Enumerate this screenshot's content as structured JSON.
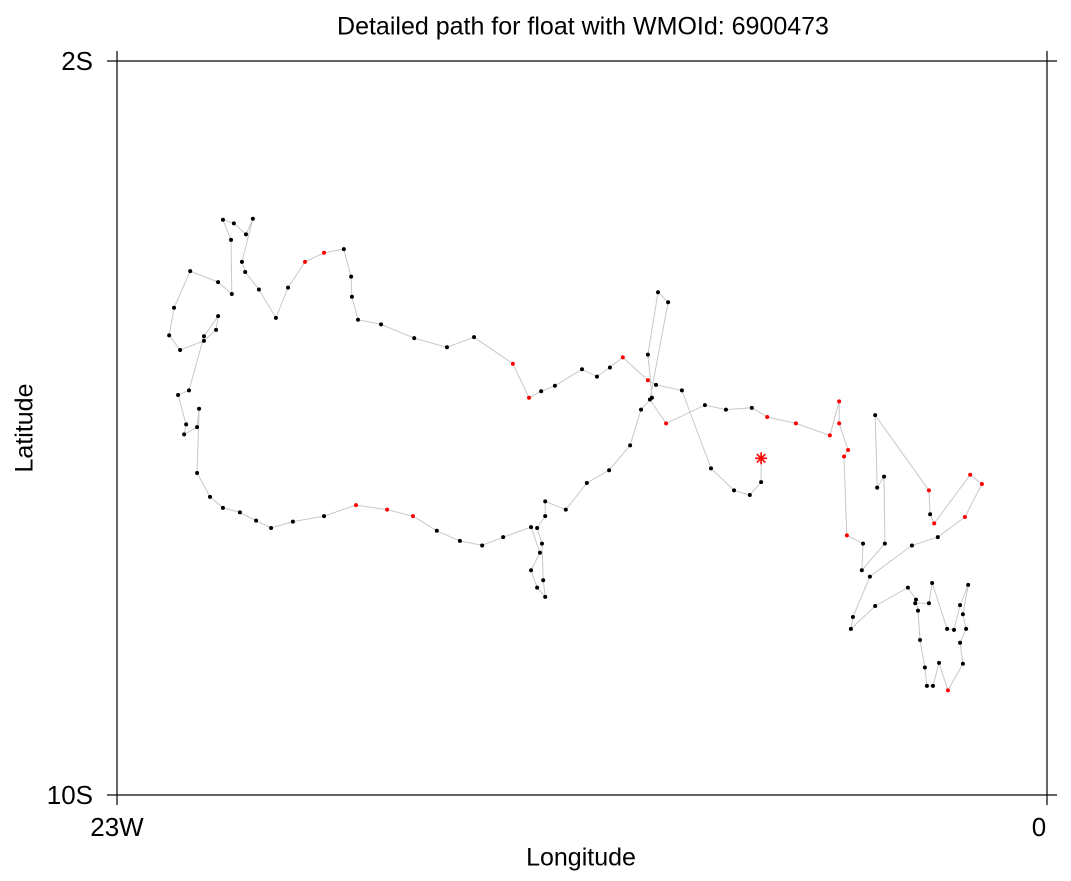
{
  "chart_data": {
    "type": "path",
    "title": "Detailed path for float with WMOId: 6900473",
    "xlabel": "Longitude",
    "ylabel": "Latitude",
    "xlim": [
      -23,
      0
    ],
    "xticks": [
      {
        "value": -23,
        "label": "23W"
      },
      0
    ],
    "ylim": [
      -10,
      -2
    ],
    "yticks": [
      {
        "value": -2,
        "label": "2S"
      },
      {
        "value": -10,
        "label": "10S"
      }
    ],
    "line_color": "#c8c8c8",
    "start_marker": "star",
    "series": [
      {
        "x": [
          -7.07,
          -7.07,
          -7.35,
          -7.74,
          -8.31,
          -9.03,
          -9.67,
          -9.87,
          -10.49,
          -10.81,
          -11.13,
          -11.5,
          -12.17,
          -12.51,
          -12.81,
          -13.21,
          -14.17,
          -14.84,
          -15.65,
          -16.47,
          -17.04,
          -17.19,
          -17.21,
          -17.39,
          -17.88,
          -18.35,
          -18.77,
          -19.07,
          -19.49,
          -19.83,
          -19.91,
          -19.64,
          -19.81,
          -20.11,
          -20.38,
          -20.18,
          -20.16,
          -20.5,
          -21.19,
          -21.59,
          -21.71,
          -21.44,
          -20.85,
          -20.55,
          -20.5,
          -20.85,
          -21.22,
          -21.49,
          -21.29,
          -21.34,
          -21.02,
          -20.97,
          -21.02,
          -20.7,
          -20.38,
          -19.96,
          -19.56,
          -19.19,
          -18.65,
          -17.88,
          -17.09,
          -16.32,
          -15.68,
          -15.09,
          -14.52,
          -13.97,
          -13.45,
          -12.76,
          -12.54,
          -12.76,
          -12.61,
          -12.41,
          -12.46,
          -12.49,
          -12.61,
          -12.41,
          -12.41,
          -11.9,
          -11.38,
          -10.83,
          -10.31,
          -10.04,
          -9.77,
          -9.87,
          -9.62,
          -9.37,
          -9.82,
          -9.42,
          -8.46,
          -7.94,
          -7.3,
          -6.92,
          -6.21,
          -5.37,
          -5.14,
          -5.14,
          -4.92,
          -5.02,
          -4.95,
          -4.55,
          -4.58,
          -4.01,
          -4.03,
          -4.2,
          -4.25,
          -2.92,
          -2.89,
          -2.79,
          -1.9,
          -1.61,
          -2.03,
          -2.7,
          -3.34,
          -4.38,
          -4.8,
          -4.85,
          -4.25,
          -3.44,
          -3.24,
          -3.19,
          -3.14,
          -3.02,
          -2.97,
          -2.82,
          -2.67,
          -2.45,
          -2.08,
          -2.15,
          -2.0,
          -2.08,
          -1.95,
          -2.15,
          -2.3,
          -2.47,
          -2.84,
          -2.92,
          -3.26
        ],
        "values": [
          -6.33,
          -6.59,
          -6.73,
          -6.68,
          -6.44,
          -5.59,
          -5.53,
          -5.48,
          -5.23,
          -5.34,
          -5.44,
          -5.36,
          -5.54,
          -5.6,
          -5.67,
          -5.3,
          -5.01,
          -5.12,
          -5.02,
          -4.87,
          -4.82,
          -4.57,
          -4.35,
          -4.05,
          -4.09,
          -4.19,
          -4.47,
          -4.8,
          -4.49,
          -4.3,
          -4.19,
          -3.72,
          -3.89,
          -3.77,
          -3.73,
          -3.95,
          -4.54,
          -4.41,
          -4.29,
          -4.69,
          -4.99,
          -5.15,
          -5.05,
          -4.93,
          -4.78,
          -5.0,
          -5.59,
          -5.64,
          -5.96,
          -6.07,
          -5.99,
          -5.79,
          -6.49,
          -6.75,
          -6.87,
          -6.92,
          -7.01,
          -7.09,
          -7.02,
          -6.96,
          -6.84,
          -6.89,
          -6.96,
          -7.12,
          -7.23,
          -7.28,
          -7.19,
          -7.08,
          -7.36,
          -7.55,
          -7.74,
          -7.84,
          -7.66,
          -7.26,
          -7.09,
          -6.96,
          -6.8,
          -6.89,
          -6.6,
          -6.46,
          -6.19,
          -5.8,
          -5.67,
          -5.2,
          -4.52,
          -4.63,
          -5.69,
          -5.95,
          -5.75,
          -5.8,
          -5.78,
          -5.88,
          -5.95,
          -6.08,
          -5.71,
          -5.95,
          -6.24,
          -6.31,
          -7.17,
          -7.26,
          -7.55,
          -7.26,
          -6.53,
          -6.65,
          -5.86,
          -6.68,
          -6.94,
          -7.04,
          -6.51,
          -6.61,
          -6.97,
          -7.19,
          -7.28,
          -7.62,
          -8.06,
          -8.19,
          -7.94,
          -7.74,
          -7.87,
          -7.99,
          -8.31,
          -8.61,
          -8.81,
          -8.81,
          -8.56,
          -8.86,
          -8.57,
          -8.34,
          -8.19,
          -8.03,
          -7.71,
          -7.93,
          -8.2,
          -8.19,
          -7.69,
          -7.91,
          -7.91
        ],
        "colors": [
          "red",
          "black",
          "black",
          "black",
          "black",
          "black",
          "black",
          "red",
          "red",
          "black",
          "black",
          "black",
          "black",
          "black",
          "red",
          "red",
          "black",
          "black",
          "black",
          "black",
          "black",
          "black",
          "black",
          "black",
          "red",
          "red",
          "black",
          "black",
          "black",
          "black",
          "black",
          "black",
          "black",
          "black",
          "black",
          "black",
          "black",
          "black",
          "black",
          "black",
          "black",
          "black",
          "black",
          "black",
          "black",
          "black",
          "black",
          "black",
          "black",
          "black",
          "black",
          "black",
          "black",
          "black",
          "black",
          "black",
          "black",
          "black",
          "black",
          "black",
          "red",
          "red",
          "red",
          "black",
          "black",
          "black",
          "black",
          "black",
          "black",
          "black",
          "black",
          "black",
          "black",
          "black",
          "black",
          "black",
          "black",
          "black",
          "black",
          "black",
          "black",
          "black",
          "black",
          "black",
          "black",
          "black",
          "black",
          "red",
          "black",
          "black",
          "black",
          "red",
          "red",
          "red",
          "red",
          "red",
          "red",
          "red",
          "red",
          "black",
          "black",
          "black",
          "black",
          "black",
          "black",
          "red",
          "black",
          "red",
          "red",
          "red",
          "red",
          "black",
          "black",
          "black",
          "black",
          "black",
          "black",
          "black",
          "black",
          "black",
          "black",
          "black",
          "black",
          "black",
          "black",
          "red",
          "black",
          "black",
          "black",
          "black",
          "black",
          "black",
          "black",
          "black",
          "black",
          "black",
          "black"
        ]
      }
    ]
  }
}
